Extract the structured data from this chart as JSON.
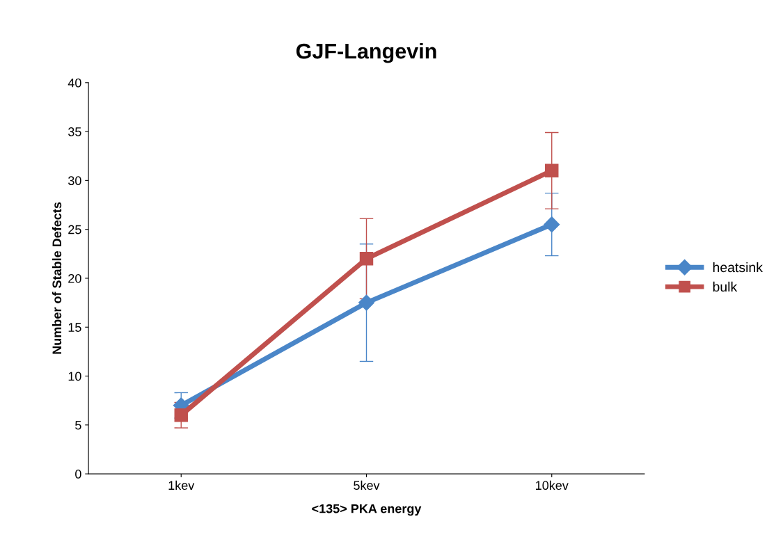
{
  "chart_data": {
    "type": "line",
    "title": "GJF-Langevin",
    "xlabel": "<135> PKA energy",
    "ylabel": "Number of Stable Defects",
    "categories": [
      "1kev",
      "5kev",
      "10kev"
    ],
    "series": [
      {
        "name": "heatsink",
        "color": "#4a86c8",
        "marker": "diamond",
        "values": [
          7,
          17.5,
          25.5
        ],
        "errors": [
          1.3,
          6,
          3.2
        ]
      },
      {
        "name": "bulk",
        "color": "#c0504d",
        "marker": "square",
        "values": [
          6,
          22,
          31
        ],
        "errors": [
          1.3,
          4.1,
          3.9
        ]
      }
    ],
    "ylim": [
      0,
      40
    ],
    "yticks": [
      0,
      5,
      10,
      15,
      20,
      25,
      30,
      35,
      40
    ],
    "grid": false,
    "legend": "right",
    "line_style": "solid"
  }
}
